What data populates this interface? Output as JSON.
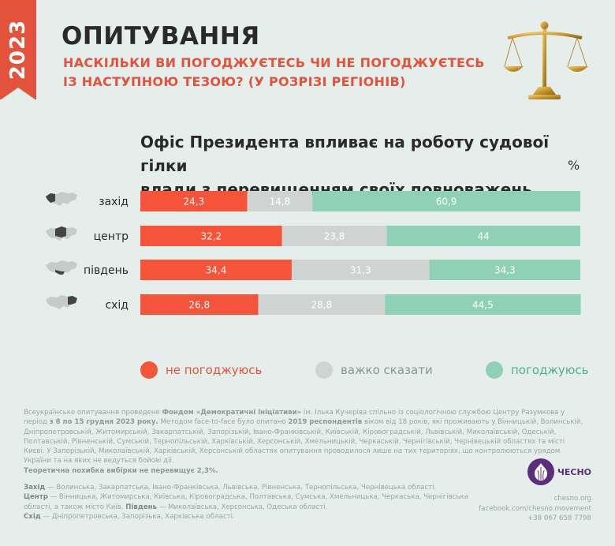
{
  "header": {
    "year": "2023",
    "title": "ОПИТУВАННЯ",
    "subtitle_line1": "НАСКІЛЬКИ ВИ ПОГОДЖУЄТЕСЬ ЧИ НЕ ПОГОДЖУЄТЕСЬ",
    "subtitle_line2": "ІЗ НАСТУПНОЮ ТЕЗОЮ? (У РОЗРІЗІ РЕГІОНІВ)"
  },
  "chart_data": {
    "type": "bar",
    "stacked": true,
    "orientation": "horizontal",
    "title_line1": "Офіс Президента впливає на роботу судової гілки",
    "title_line2": "влади  з перевищенням своїх повноважень",
    "unit": "%",
    "categories": [
      "захід",
      "центр",
      "південь",
      "схід"
    ],
    "series": [
      {
        "name": "не погоджуюсь",
        "color": "#f5533a",
        "values": [
          "24,3",
          "32,2",
          "34,4",
          "26,8"
        ],
        "numeric": [
          24.3,
          32.2,
          34.4,
          26.8
        ]
      },
      {
        "name": "важко сказати",
        "color": "#cfd4d3",
        "values": [
          "14,8",
          "23,8",
          "31,3",
          "28,8"
        ],
        "numeric": [
          14.8,
          23.8,
          31.3,
          28.8
        ]
      },
      {
        "name": "погоджуюсь",
        "color": "#8fd1b7",
        "values": [
          "60,9",
          "44",
          "34,3",
          "44,5"
        ],
        "numeric": [
          60.9,
          44,
          34.3,
          44.5
        ]
      }
    ],
    "legend_position": "bottom"
  },
  "footnote": {
    "p1_a": "Всеукраїнське опитування проведене ",
    "p1_b": "Фондом «Демократичні ініціативи»",
    "p1_c": " ім. Ілька Кучеріва",
    "p1_d": " спільно із соціологічною службою Центру Разумкова у період ",
    "p1_e": "з 8 по 15 грудня 2023 року.",
    "p1_f": " Методом face-to-face було опитано ",
    "p1_g": "2019 респондентів",
    "p1_h": " віком від 18 років, які проживають у Вінницькій, Волинській, Дніпропетровській, Житомирській, Закарпатській, Запорізькій, Івано-Франківській, Київській, Кіровоградській, Львівській, Миколаївській, Одеській, Полтавській, Рівненській, Сумській, Тернопільській, Харківській, Херсонській, Хмельницькій, Черкаській, Чернігівській, Чернівецькій областях та місті Києві. У Запорізькій, Миколаївській, Харківській, Херсонській областях опитування проводилося лише на тих територіях, що контролюються урядом України та на яких не ведуться бойові дії.",
    "p2": "Теоретична похибка вибірки не перевищує 2,3%."
  },
  "regions": {
    "west_label": "Захід",
    "west_text": " — Волинська, Закарпатська, Івано-Франківська, Львівська, Рівненська, Тернопільська, Чернівецька області.",
    "center_label": "Центр",
    "center_text": " — Вінницька, Житомирська, Київська, Кіровоградська, Полтавська, Сумська, Хмельницька, Черкаська, Чернігівська області, а також місто Київ. ",
    "south_label": "Південь",
    "south_text": " — Миколаївська, Херсонська, Одеська області.",
    "east_label": "Схід",
    "east_text": " — Дніпропетровська, Запорізька, Харківська області."
  },
  "brand": {
    "logo_text": "ЧЕСНО",
    "site": "chesno.org",
    "facebook": "facebook.com/chesno.movement",
    "phone": "+38 067 658 7798"
  }
}
